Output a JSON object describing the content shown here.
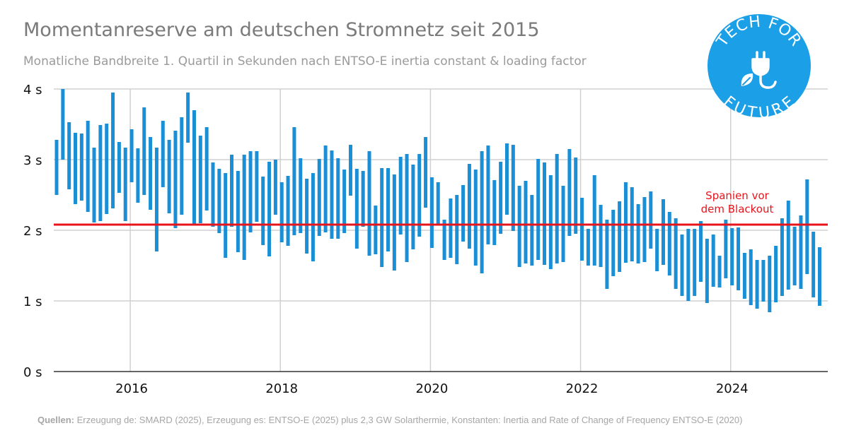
{
  "title": "Momentanreserve am deutschen Stromnetz seit 2015",
  "subtitle": "Monatliche Bandbreite 1. Quartil in Sekunden nach ENTSO-E inertia constant & loading factor",
  "source": {
    "label": "Quellen:",
    "text": " Erzeugung de: SMARD (2025), Erzeugung es: ENTSO-E (2025) plus 2,3 GW Solarthermie, Konstanten: Inertia and Rate of Change of Frequency ENTSO-E (2020)"
  },
  "logo": {
    "text_top": "TECH FOR",
    "text_bottom": "FUTURE",
    "icon": "plug-leaf-icon",
    "color": "#1b9fe6"
  },
  "colors": {
    "bars": "#1b8fd6",
    "reference_line": "#e8141b",
    "annotation": "#e8141b",
    "grid": "#d0d0d0",
    "axis": "#333333"
  },
  "chart_data": {
    "type": "floating-bar",
    "title": "Momentanreserve am deutschen Stromnetz seit 2015",
    "subtitle": "Monatliche Bandbreite 1. Quartil in Sekunden nach ENTSO-E inertia constant & loading factor",
    "xlabel": "",
    "ylabel": "",
    "x_unit": "month",
    "x_start": "2015-01",
    "x_ticks": [
      "2016",
      "2018",
      "2020",
      "2022",
      "2024"
    ],
    "y_ticks": [
      "0 s",
      "1 s",
      "2 s",
      "3 s",
      "4 s"
    ],
    "ylim": [
      0,
      4
    ],
    "grid": true,
    "reference_line": {
      "value": 2.08,
      "label_line1": "Spanien vor",
      "label_line2": "dem Blackout"
    },
    "series": [
      {
        "values": [
          [
            2.5,
            3.28
          ],
          [
            3.0,
            4.0
          ],
          [
            2.58,
            3.53
          ],
          [
            2.37,
            3.38
          ],
          [
            2.42,
            3.37
          ],
          [
            2.26,
            3.55
          ],
          [
            2.11,
            3.17
          ],
          [
            2.13,
            3.49
          ],
          [
            2.23,
            3.51
          ],
          [
            2.31,
            3.95
          ],
          [
            2.53,
            3.25
          ],
          [
            2.13,
            3.17
          ],
          [
            2.68,
            3.43
          ],
          [
            2.39,
            3.16
          ],
          [
            2.5,
            3.74
          ],
          [
            2.29,
            3.32
          ],
          [
            1.7,
            3.17
          ],
          [
            2.61,
            3.55
          ],
          [
            2.24,
            3.28
          ],
          [
            2.03,
            3.41
          ],
          [
            2.22,
            3.6
          ],
          [
            3.24,
            3.95
          ],
          [
            2.08,
            3.7
          ],
          [
            2.1,
            3.34
          ],
          [
            2.28,
            3.46
          ],
          [
            2.05,
            2.96
          ],
          [
            1.96,
            2.87
          ],
          [
            1.61,
            2.81
          ],
          [
            2.05,
            3.07
          ],
          [
            1.69,
            2.84
          ],
          [
            1.58,
            3.07
          ],
          [
            1.97,
            3.12
          ],
          [
            2.12,
            3.12
          ],
          [
            1.79,
            2.76
          ],
          [
            1.63,
            2.97
          ],
          [
            2.22,
            3.0
          ],
          [
            1.83,
            2.68
          ],
          [
            1.78,
            2.77
          ],
          [
            1.93,
            3.46
          ],
          [
            1.96,
            3.02
          ],
          [
            1.67,
            2.73
          ],
          [
            1.56,
            2.81
          ],
          [
            1.92,
            3.01
          ],
          [
            1.97,
            3.2
          ],
          [
            1.88,
            3.13
          ],
          [
            1.88,
            3.02
          ],
          [
            1.96,
            2.86
          ],
          [
            2.49,
            3.21
          ],
          [
            1.74,
            2.87
          ],
          [
            2.05,
            2.84
          ],
          [
            1.64,
            3.12
          ],
          [
            1.66,
            2.35
          ],
          [
            1.48,
            2.88
          ],
          [
            1.7,
            2.88
          ],
          [
            1.43,
            2.79
          ],
          [
            1.94,
            3.04
          ],
          [
            1.55,
            3.08
          ],
          [
            1.73,
            2.93
          ],
          [
            1.91,
            3.08
          ],
          [
            2.32,
            3.32
          ],
          [
            1.75,
            2.75
          ],
          [
            2.08,
            2.68
          ],
          [
            1.58,
            2.15
          ],
          [
            1.61,
            2.45
          ],
          [
            1.52,
            2.5
          ],
          [
            1.84,
            2.64
          ],
          [
            1.74,
            2.94
          ],
          [
            1.5,
            2.86
          ],
          [
            1.39,
            3.12
          ],
          [
            1.8,
            3.2
          ],
          [
            1.79,
            2.71
          ],
          [
            1.95,
            2.97
          ],
          [
            2.22,
            3.23
          ],
          [
            1.99,
            3.21
          ],
          [
            1.48,
            2.63
          ],
          [
            1.53,
            2.7
          ],
          [
            1.5,
            2.5
          ],
          [
            1.58,
            3.01
          ],
          [
            1.51,
            2.96
          ],
          [
            1.45,
            2.78
          ],
          [
            1.53,
            3.08
          ],
          [
            1.55,
            2.63
          ],
          [
            1.92,
            3.15
          ],
          [
            1.95,
            3.03
          ],
          [
            1.57,
            2.46
          ],
          [
            1.5,
            2.02
          ],
          [
            1.5,
            2.78
          ],
          [
            1.48,
            2.36
          ],
          [
            1.17,
            2.15
          ],
          [
            1.35,
            2.29
          ],
          [
            1.41,
            2.41
          ],
          [
            1.54,
            2.68
          ],
          [
            1.56,
            2.61
          ],
          [
            1.53,
            2.37
          ],
          [
            1.55,
            2.47
          ],
          [
            1.74,
            2.55
          ],
          [
            1.42,
            2.02
          ],
          [
            1.51,
            2.44
          ],
          [
            1.36,
            2.26
          ],
          [
            1.17,
            2.17
          ],
          [
            1.07,
            1.94
          ],
          [
            1.0,
            2.02
          ],
          [
            1.07,
            2.02
          ],
          [
            1.27,
            2.13
          ],
          [
            0.97,
            1.88
          ],
          [
            1.2,
            1.94
          ],
          [
            1.19,
            1.64
          ],
          [
            1.32,
            2.15
          ],
          [
            1.22,
            2.03
          ],
          [
            1.15,
            2.04
          ],
          [
            1.03,
            1.68
          ],
          [
            0.94,
            1.73
          ],
          [
            0.89,
            1.58
          ],
          [
            0.99,
            1.58
          ],
          [
            0.84,
            1.64
          ],
          [
            0.98,
            1.78
          ],
          [
            1.07,
            2.17
          ],
          [
            1.16,
            2.42
          ],
          [
            1.22,
            2.05
          ],
          [
            1.17,
            2.21
          ],
          [
            1.38,
            2.72
          ],
          [
            1.05,
            1.98
          ],
          [
            0.93,
            1.76
          ]
        ]
      }
    ]
  }
}
